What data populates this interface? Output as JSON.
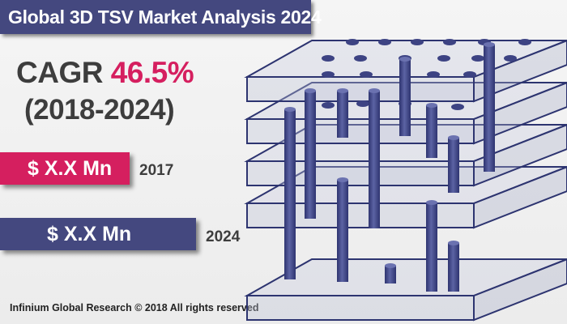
{
  "header": {
    "title": "Global 3D TSV Market Analysis 2024"
  },
  "stats": {
    "cagr_label": "CAGR",
    "cagr_value": "46.5%",
    "period": "(2018-2024)"
  },
  "market_bars": [
    {
      "value": "$ X.X Mn",
      "year": "2017",
      "color": "#d51f5f"
    },
    {
      "value": "$ X.X Mn",
      "year": "2024",
      "color": "#44487f"
    }
  ],
  "footer": {
    "copyright": "Infinium Global Research © 2018 All rights reserved"
  },
  "illustration": {
    "icon": "3d-tsv-chip-stack-icon",
    "slab_count": 5
  },
  "colors": {
    "accent": "#d51f5f",
    "brand": "#44487f",
    "text": "#3d3d3d"
  }
}
